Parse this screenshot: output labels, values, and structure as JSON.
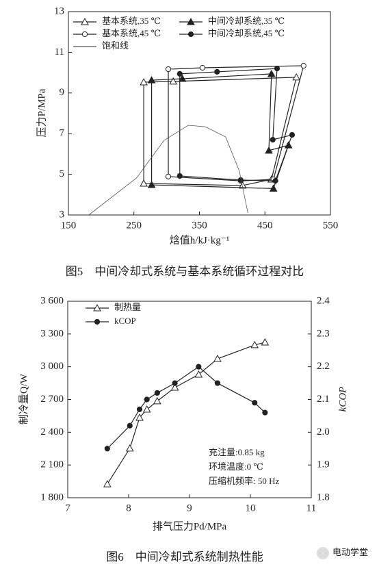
{
  "chart_data": [
    {
      "type": "line",
      "xlim": [
        150,
        550
      ],
      "xticks": [
        150,
        250,
        350,
        450,
        550
      ],
      "ylim": [
        3,
        13
      ],
      "yticks": [
        3,
        5,
        7,
        9,
        11,
        13
      ],
      "xlabel": "焓值h/kJ·kg⁻¹",
      "ylabel": "压力P/MPa",
      "caption": "图5　中间冷却式系统与基本系统循环过程对比",
      "legend": "upper left",
      "legend_columns": 2,
      "frame": "box",
      "series": [
        {
          "name": "基本系统,35 ℃",
          "color": "#222",
          "marker": "triangle-open",
          "closed": true,
          "x": [
            265,
            310,
            498,
            460,
            416,
            265
          ],
          "values": [
            9.53,
            9.57,
            9.77,
            4.75,
            4.45,
            4.55
          ]
        },
        {
          "name": "中间冷却系统,35 ℃",
          "color": "#222",
          "marker": "triangle-filled",
          "closed": true,
          "x": [
            277,
            324,
            460,
            456,
            486,
            463,
            277
          ],
          "values": [
            9.63,
            9.7,
            9.94,
            6.17,
            6.43,
            4.3,
            4.48
          ]
        },
        {
          "name": "基本系统,45 ℃",
          "color": "#222",
          "marker": "circle-open",
          "closed": true,
          "x": [
            302.5,
            354.7,
            509,
            463,
            413,
            302.5
          ],
          "values": [
            10.17,
            10.24,
            10.34,
            4.75,
            4.68,
            4.89
          ]
        },
        {
          "name": "中间冷却系统,45 ℃",
          "color": "#222",
          "marker": "circle-filled",
          "closed": true,
          "x": [
            320,
            377,
            468.5,
            462,
            491.5,
            466,
            413,
            320
          ],
          "values": [
            9.94,
            10.04,
            10.2,
            6.7,
            6.94,
            4.68,
            4.72,
            4.92
          ]
        },
        {
          "name": "饱和线",
          "color": "#555",
          "marker": "none",
          "closed": false,
          "x": [
            181,
            254,
            296,
            333,
            359,
            390,
            411,
            424
          ],
          "values": [
            3,
            4.82,
            6.67,
            7.41,
            7.34,
            6.84,
            5.15,
            3.1
          ]
        }
      ]
    },
    {
      "type": "line",
      "xlim": [
        7,
        11
      ],
      "xticks": [
        7,
        8,
        9,
        10,
        11
      ],
      "ylim": [
        1800,
        3600
      ],
      "yticks": [
        {
          "value": 1800,
          "label": "1 800"
        },
        {
          "value": 2100,
          "label": "2 100"
        },
        {
          "value": 2400,
          "label": "2 400"
        },
        {
          "value": 2700,
          "label": "2 700"
        },
        {
          "value": 3000,
          "label": "3 000"
        },
        {
          "value": 3300,
          "label": "3 300"
        },
        {
          "value": 3600,
          "label": "3 600"
        }
      ],
      "y2lim": [
        1.8,
        2.4
      ],
      "y2ticks": [
        1.8,
        1.9,
        {
          "value": 2,
          "label": "2.0"
        },
        2.1,
        2.2,
        2.3,
        2.4
      ],
      "xlabel": "排气压力Pd/MPa",
      "ylabel": "制冷量Q/W",
      "y2label": "kCOP",
      "caption": "图6　中间冷却式系统制热性能",
      "legend": "upper left",
      "legend_columns": 1,
      "frame": "box",
      "annotations": [
        "充注量:0.85 kg",
        "环境温度:0 ℃",
        "压缩机频率: 50 Hz"
      ],
      "x": [
        7.65,
        8.02,
        8.18,
        8.3,
        8.47,
        8.76,
        9.15,
        9.46,
        10.07,
        10.24
      ],
      "series": [
        {
          "name": "制热量",
          "color": "#222",
          "marker": "triangle-open",
          "closed": false,
          "values": [
            1925,
            2252,
            2534,
            2609,
            2685,
            2810,
            2929,
            3073,
            3199,
            3224
          ]
        },
        {
          "name": "kCOP",
          "color": "#222",
          "marker": "circle-filled",
          "closed": false,
          "axis": "y2",
          "values": [
            1.95,
            2.02,
            2.07,
            2.1,
            2.12,
            2.15,
            2.2,
            2.15,
            2.09,
            2.06
          ]
        }
      ]
    }
  ],
  "watermark": "电动学堂"
}
